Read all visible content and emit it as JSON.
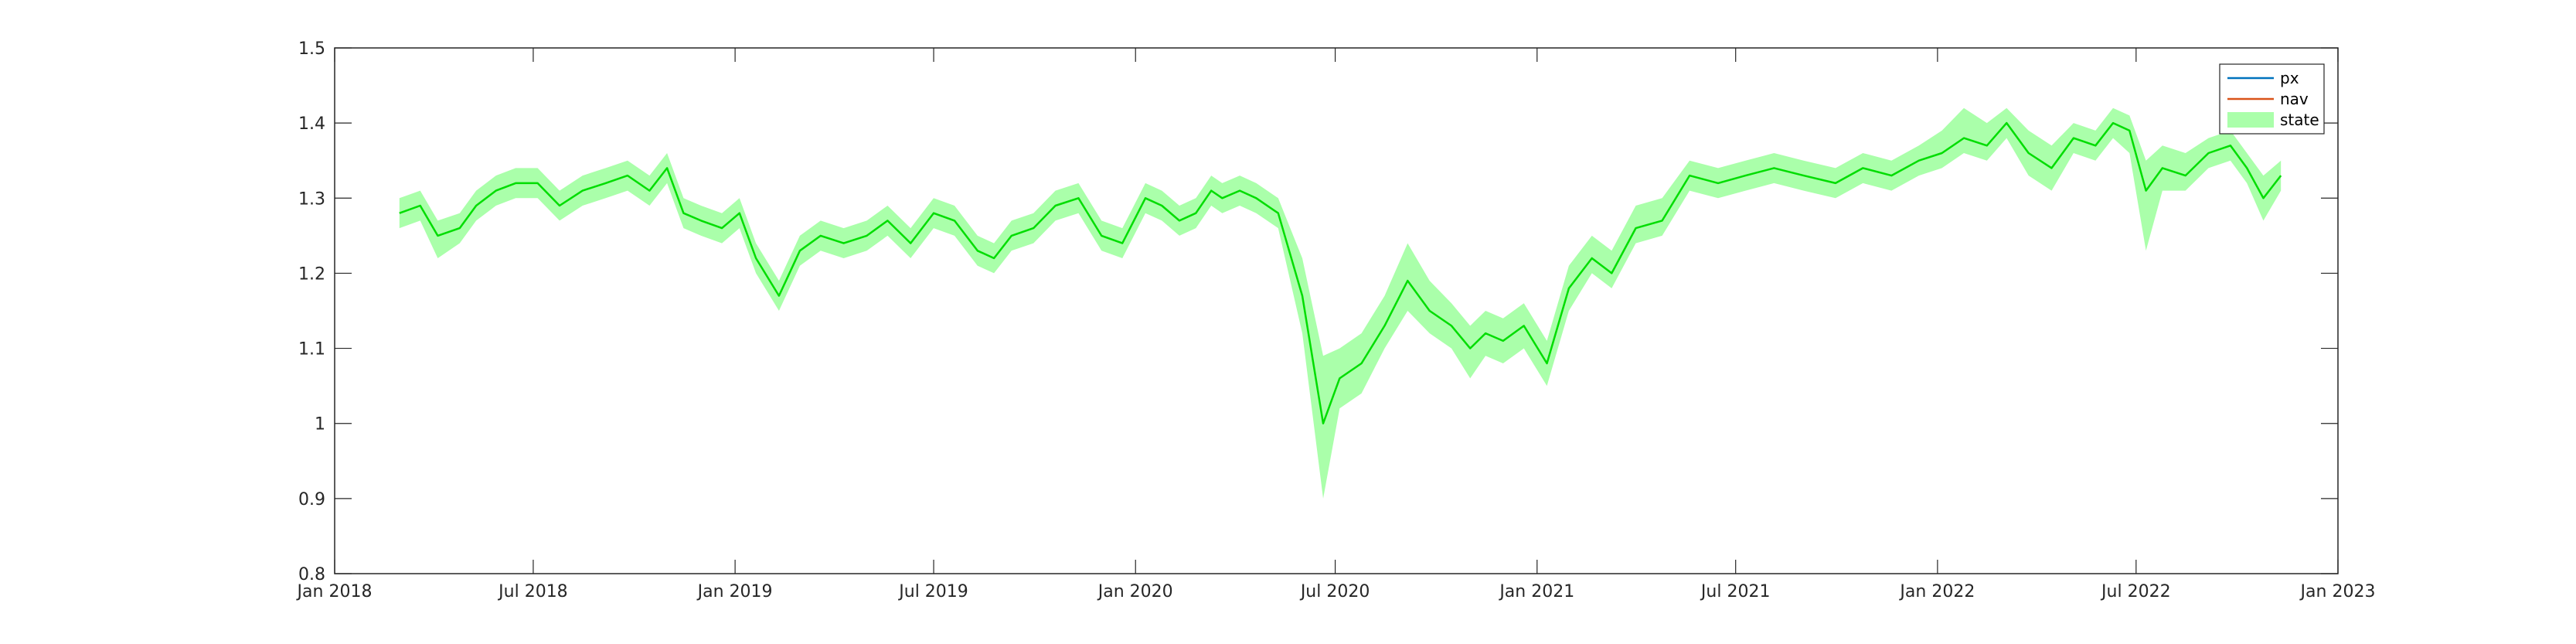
{
  "chart_data": {
    "type": "line",
    "title": "",
    "xlabel": "",
    "ylabel": "",
    "xlim": [
      "2018-01-01",
      "2023-01-01"
    ],
    "ylim": [
      0.8,
      1.5
    ],
    "grid": false,
    "legend_placement": "top-right",
    "x_ticks": [
      {
        "date": "2018-01-01",
        "label": "Jan 2018"
      },
      {
        "date": "2018-07-01",
        "label": "Jul 2018"
      },
      {
        "date": "2019-01-01",
        "label": "Jan 2019"
      },
      {
        "date": "2019-07-01",
        "label": "Jul 2019"
      },
      {
        "date": "2020-01-01",
        "label": "Jan 2020"
      },
      {
        "date": "2020-07-01",
        "label": "Jul 2020"
      },
      {
        "date": "2021-01-01",
        "label": "Jan 2021"
      },
      {
        "date": "2021-07-01",
        "label": "Jul 2021"
      },
      {
        "date": "2022-01-01",
        "label": "Jan 2022"
      },
      {
        "date": "2022-07-01",
        "label": "Jul 2022"
      },
      {
        "date": "2023-01-01",
        "label": "Jan 2023"
      }
    ],
    "y_ticks": [
      {
        "value": 0.8,
        "label": "0.8"
      },
      {
        "value": 0.9,
        "label": "0.9"
      },
      {
        "value": 1.0,
        "label": "1"
      },
      {
        "value": 1.1,
        "label": "1.1"
      },
      {
        "value": 1.2,
        "label": "1.2"
      },
      {
        "value": 1.3,
        "label": "1.3"
      },
      {
        "value": 1.4,
        "label": "1.4"
      },
      {
        "value": 1.5,
        "label": "1.5"
      }
    ],
    "legend": [
      {
        "name": "px",
        "color": "#0072BD",
        "kind": "line"
      },
      {
        "name": "nav",
        "color": "#D95319",
        "kind": "line"
      },
      {
        "name": "state",
        "color": "#AAFFAA",
        "kind": "band"
      }
    ],
    "colors": {
      "state_band": "#AAFFAA",
      "state_line": "#00DD00",
      "px": "#0072BD",
      "nav": "#D95319",
      "axis": "#262626"
    },
    "series": [
      {
        "name": "state",
        "x": [
          "2018-03-01",
          "2018-03-20",
          "2018-04-05",
          "2018-04-25",
          "2018-05-10",
          "2018-05-28",
          "2018-06-15",
          "2018-07-05",
          "2018-07-25",
          "2018-08-15",
          "2018-09-05",
          "2018-09-25",
          "2018-10-15",
          "2018-10-31",
          "2018-11-15",
          "2018-12-01",
          "2018-12-20",
          "2019-01-05",
          "2019-01-20",
          "2019-02-10",
          "2019-03-01",
          "2019-03-20",
          "2019-04-10",
          "2019-05-01",
          "2019-05-20",
          "2019-06-10",
          "2019-07-01",
          "2019-07-20",
          "2019-08-10",
          "2019-08-25",
          "2019-09-10",
          "2019-09-30",
          "2019-10-20",
          "2019-11-10",
          "2019-12-01",
          "2019-12-20",
          "2020-01-10",
          "2020-01-25",
          "2020-02-10",
          "2020-02-25",
          "2020-03-10",
          "2020-03-20",
          "2020-04-05",
          "2020-04-20",
          "2020-05-10",
          "2020-06-01",
          "2020-06-20",
          "2020-07-05",
          "2020-07-25",
          "2020-08-15",
          "2020-09-05",
          "2020-09-25",
          "2020-10-15",
          "2020-11-01",
          "2020-11-15",
          "2020-12-01",
          "2020-12-20",
          "2021-01-10",
          "2021-01-30",
          "2021-02-20",
          "2021-03-10",
          "2021-04-01",
          "2021-04-25",
          "2021-05-20",
          "2021-06-15",
          "2021-07-10",
          "2021-08-05",
          "2021-09-01",
          "2021-09-30",
          "2021-10-25",
          "2021-11-20",
          "2021-12-15",
          "2022-01-05",
          "2022-01-25",
          "2022-02-15",
          "2022-03-05",
          "2022-03-25",
          "2022-04-15",
          "2022-05-05",
          "2022-05-25",
          "2022-06-10",
          "2022-06-25",
          "2022-07-10",
          "2022-07-25",
          "2022-08-15",
          "2022-09-05",
          "2022-09-25",
          "2022-10-10",
          "2022-10-25",
          "2022-11-10"
        ],
        "values": [
          1.28,
          1.29,
          1.25,
          1.26,
          1.29,
          1.31,
          1.32,
          1.32,
          1.29,
          1.31,
          1.32,
          1.33,
          1.31,
          1.34,
          1.28,
          1.27,
          1.26,
          1.28,
          1.22,
          1.17,
          1.23,
          1.25,
          1.24,
          1.25,
          1.27,
          1.24,
          1.28,
          1.27,
          1.23,
          1.22,
          1.25,
          1.26,
          1.29,
          1.3,
          1.25,
          1.24,
          1.3,
          1.29,
          1.27,
          1.28,
          1.31,
          1.3,
          1.31,
          1.3,
          1.28,
          1.17,
          1.0,
          1.06,
          1.08,
          1.13,
          1.19,
          1.15,
          1.13,
          1.1,
          1.12,
          1.11,
          1.13,
          1.08,
          1.18,
          1.22,
          1.2,
          1.26,
          1.27,
          1.33,
          1.32,
          1.33,
          1.34,
          1.33,
          1.32,
          1.34,
          1.33,
          1.35,
          1.36,
          1.38,
          1.37,
          1.4,
          1.36,
          1.34,
          1.38,
          1.37,
          1.4,
          1.39,
          1.31,
          1.34,
          1.33,
          1.36,
          1.37,
          1.34,
          1.3,
          1.33
        ],
        "lower": [
          1.26,
          1.27,
          1.22,
          1.24,
          1.27,
          1.29,
          1.3,
          1.3,
          1.27,
          1.29,
          1.3,
          1.31,
          1.29,
          1.32,
          1.26,
          1.25,
          1.24,
          1.26,
          1.2,
          1.15,
          1.21,
          1.23,
          1.22,
          1.23,
          1.25,
          1.22,
          1.26,
          1.25,
          1.21,
          1.2,
          1.23,
          1.24,
          1.27,
          1.28,
          1.23,
          1.22,
          1.28,
          1.27,
          1.25,
          1.26,
          1.29,
          1.28,
          1.29,
          1.28,
          1.26,
          1.12,
          0.9,
          1.02,
          1.04,
          1.1,
          1.15,
          1.12,
          1.1,
          1.06,
          1.09,
          1.08,
          1.1,
          1.05,
          1.15,
          1.2,
          1.18,
          1.24,
          1.25,
          1.31,
          1.3,
          1.31,
          1.32,
          1.31,
          1.3,
          1.32,
          1.31,
          1.33,
          1.34,
          1.36,
          1.35,
          1.38,
          1.33,
          1.31,
          1.36,
          1.35,
          1.38,
          1.36,
          1.23,
          1.31,
          1.31,
          1.34,
          1.35,
          1.32,
          1.27,
          1.31
        ],
        "upper": [
          1.3,
          1.31,
          1.27,
          1.28,
          1.31,
          1.33,
          1.34,
          1.34,
          1.31,
          1.33,
          1.34,
          1.35,
          1.33,
          1.36,
          1.3,
          1.29,
          1.28,
          1.3,
          1.24,
          1.19,
          1.25,
          1.27,
          1.26,
          1.27,
          1.29,
          1.26,
          1.3,
          1.29,
          1.25,
          1.24,
          1.27,
          1.28,
          1.31,
          1.32,
          1.27,
          1.26,
          1.32,
          1.31,
          1.29,
          1.3,
          1.33,
          1.32,
          1.33,
          1.32,
          1.3,
          1.22,
          1.09,
          1.1,
          1.12,
          1.17,
          1.24,
          1.19,
          1.16,
          1.13,
          1.15,
          1.14,
          1.16,
          1.11,
          1.21,
          1.25,
          1.23,
          1.29,
          1.3,
          1.35,
          1.34,
          1.35,
          1.36,
          1.35,
          1.34,
          1.36,
          1.35,
          1.37,
          1.39,
          1.42,
          1.4,
          1.42,
          1.39,
          1.37,
          1.4,
          1.39,
          1.42,
          1.41,
          1.35,
          1.37,
          1.36,
          1.38,
          1.39,
          1.36,
          1.33,
          1.35
        ]
      }
    ]
  }
}
